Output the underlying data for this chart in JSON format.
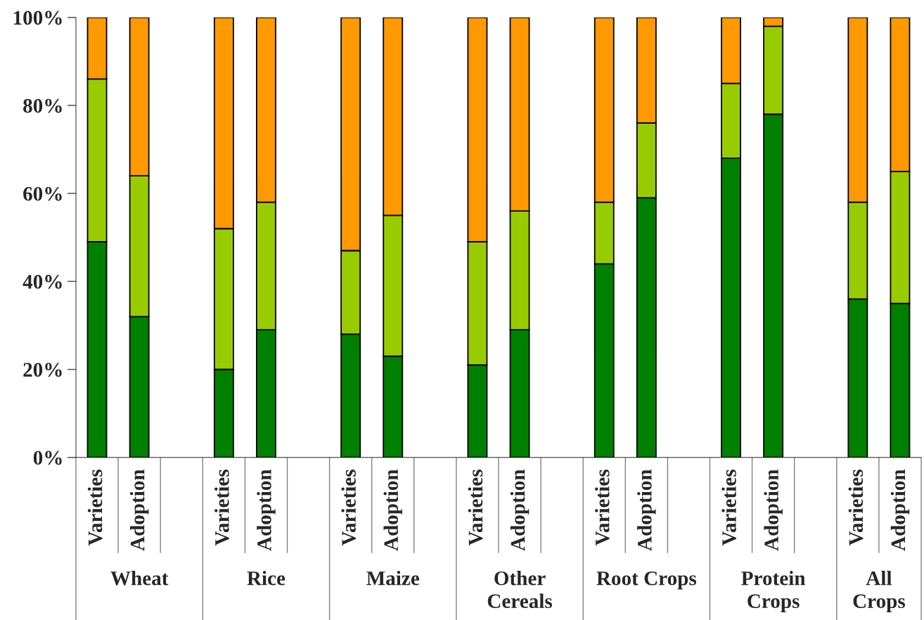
{
  "chart_data": {
    "type": "bar",
    "stacked": true,
    "categories": [
      "Varieties",
      "Adoption",
      null,
      "Varieties",
      "Adoption",
      null,
      "Varieties",
      "Adoption",
      null,
      "Varieties",
      "Adoption",
      null,
      "Varieties",
      "Adoption",
      null,
      "Varieties",
      "Adoption",
      null,
      "Varieties",
      "Adoption"
    ],
    "series": [
      {
        "color": "#008000",
        "values": [
          49,
          32,
          null,
          20,
          29,
          null,
          28,
          23,
          null,
          21,
          29,
          null,
          44,
          59,
          null,
          68,
          78,
          null,
          36,
          35
        ]
      },
      {
        "color": "#99cc00",
        "values": [
          37,
          32,
          null,
          32,
          29,
          null,
          19,
          32,
          null,
          28,
          27,
          null,
          14,
          17,
          null,
          17,
          20,
          null,
          22,
          30
        ]
      },
      {
        "color": "#ff9900",
        "values": [
          14,
          36,
          null,
          48,
          42,
          null,
          53,
          45,
          null,
          51,
          44,
          null,
          42,
          24,
          null,
          15,
          2,
          null,
          42,
          35
        ]
      }
    ],
    "ylim": [
      0,
      100
    ],
    "yticks": [
      {
        "value": 0,
        "label": "0%"
      },
      {
        "value": 20,
        "label": "20%"
      },
      {
        "value": 40,
        "label": "40%"
      },
      {
        "value": 60,
        "label": "60%"
      },
      {
        "value": 80,
        "label": "80%"
      },
      {
        "value": 100,
        "label": "100%"
      }
    ],
    "annotations": [
      "Wheat",
      "Rice",
      "Maize",
      "Other Cereals",
      "Root Crops",
      "Protein Crops",
      "All Crops"
    ]
  }
}
